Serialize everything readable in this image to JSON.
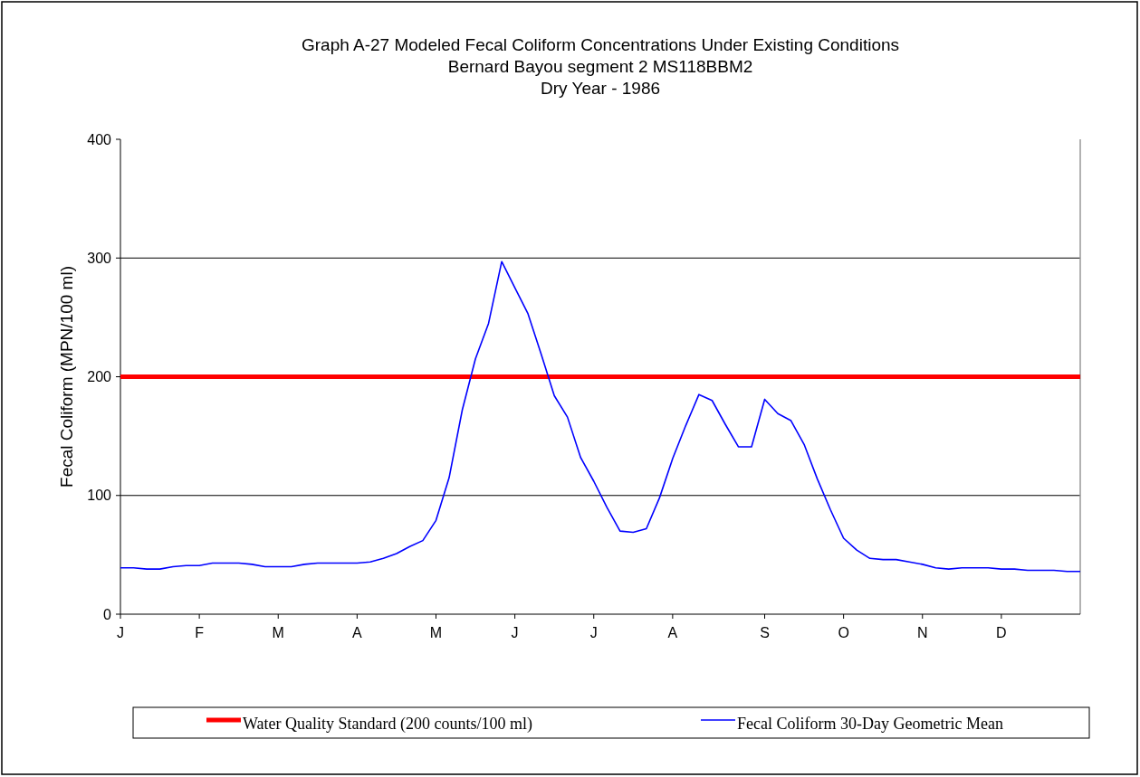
{
  "chart_data": {
    "type": "line",
    "title": "Graph A-27  Modeled Fecal Coliform Concentrations Under Existing Conditions",
    "subtitle": "Bernard Bayou segment 2 MS118BBM2\nDry Year - 1986",
    "ylabel": "Fecal Coliform (MPN/100 ml)",
    "categories": [
      "J",
      null,
      null,
      null,
      null,
      null,
      "F",
      null,
      null,
      null,
      null,
      null,
      "M",
      null,
      null,
      null,
      null,
      null,
      "A",
      null,
      null,
      null,
      null,
      null,
      "M",
      null,
      null,
      null,
      null,
      null,
      "J",
      null,
      null,
      null,
      null,
      null,
      "J",
      null,
      null,
      null,
      null,
      null,
      "A",
      null,
      null,
      null,
      null,
      null,
      null,
      "S",
      null,
      null,
      null,
      null,
      null,
      "O",
      null,
      null,
      null,
      null,
      null,
      "N",
      null,
      null,
      null,
      null,
      null,
      "D",
      null,
      null,
      null,
      null,
      null,
      null
    ],
    "series": [
      {
        "name": "Fecal Coliform 30-Day Geometric Mean",
        "color": "#0000ff",
        "values": [
          39,
          39,
          38,
          38,
          40,
          41,
          41,
          43,
          43,
          43,
          42,
          40,
          40,
          40,
          42,
          43,
          43,
          43,
          43,
          44,
          47,
          51,
          57,
          62,
          79,
          115,
          172,
          215,
          245,
          297,
          275,
          253,
          219,
          184,
          166,
          132,
          112,
          90,
          70,
          69,
          72,
          98,
          131,
          159,
          185,
          180,
          160,
          141,
          141,
          181,
          169,
          163,
          143,
          114,
          88,
          64,
          54,
          47,
          46,
          46,
          44,
          42,
          39,
          38,
          39,
          39,
          39,
          38,
          38,
          37,
          37,
          37,
          36,
          36
        ]
      }
    ],
    "ref_lines": [
      {
        "axis": "y",
        "value": 200,
        "label": "Water Quality Standard (200 counts/100 ml)",
        "color": "#ff0000"
      }
    ],
    "ylim": [
      0,
      400
    ],
    "yticks": [
      0,
      100,
      200,
      300,
      400
    ],
    "grid": "y",
    "legend": "bottom"
  }
}
